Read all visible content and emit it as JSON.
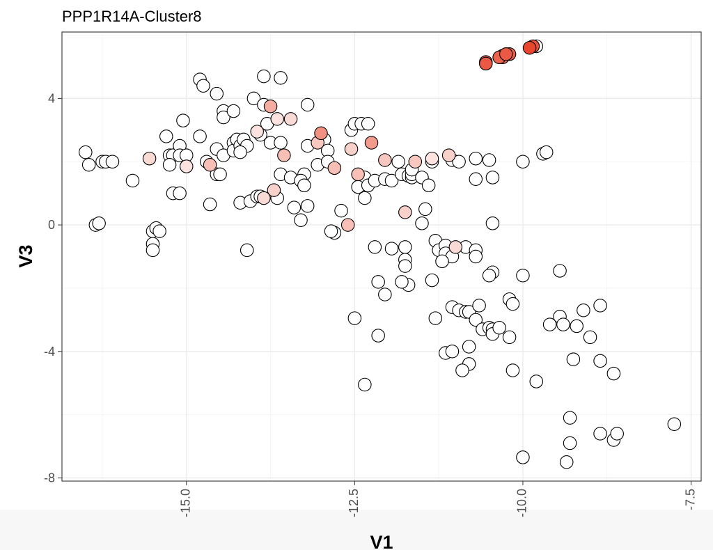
{
  "chart_data": {
    "type": "scatter",
    "title": "PPP1R14A-Cluster8",
    "xlabel": "V1",
    "ylabel": "V3",
    "xlim": [
      -16.85,
      -7.35
    ],
    "ylim": [
      -8.1,
      6.1
    ],
    "grid": true,
    "x_ticks": [
      -15.0,
      -12.5,
      -10.0,
      -7.5
    ],
    "x_tick_labels": [
      "-15.0",
      "-12.5",
      "-10.0",
      "-7.5"
    ],
    "y_ticks": [
      4,
      0,
      -4,
      -8
    ],
    "y_tick_labels": [
      "4",
      "0",
      "-4",
      "-8"
    ],
    "low_color": "#ffffff",
    "high_color": "#e8472e",
    "points": [
      [
        -16.5,
        2.3,
        0
      ],
      [
        -16.45,
        1.9,
        0
      ],
      [
        -16.25,
        2.0,
        0
      ],
      [
        -16.2,
        2.0,
        0
      ],
      [
        -16.1,
        2.0,
        0
      ],
      [
        -15.8,
        1.4,
        0
      ],
      [
        -16.35,
        0.0,
        0
      ],
      [
        -16.3,
        0.05,
        0
      ],
      [
        -15.55,
        2.1,
        0.2
      ],
      [
        -15.3,
        2.8,
        0
      ],
      [
        -15.25,
        2.2,
        0
      ],
      [
        -15.2,
        2.2,
        0
      ],
      [
        -15.25,
        1.9,
        0
      ],
      [
        -15.1,
        2.5,
        0
      ],
      [
        -15.1,
        2.2,
        0
      ],
      [
        -15.05,
        3.3,
        0
      ],
      [
        -15.0,
        2.2,
        0
      ],
      [
        -15.0,
        1.85,
        0.15
      ],
      [
        -15.2,
        1.0,
        0
      ],
      [
        -15.1,
        1.0,
        0
      ],
      [
        -15.5,
        -0.2,
        0
      ],
      [
        -15.45,
        -0.1,
        0
      ],
      [
        -15.4,
        -0.2,
        0
      ],
      [
        -15.5,
        -0.6,
        0
      ],
      [
        -15.5,
        -0.8,
        0
      ],
      [
        -14.8,
        4.6,
        0
      ],
      [
        -14.75,
        4.4,
        0
      ],
      [
        -14.55,
        4.15,
        0
      ],
      [
        -14.45,
        3.6,
        0
      ],
      [
        -14.45,
        3.4,
        0
      ],
      [
        -14.3,
        3.6,
        0
      ],
      [
        -14.8,
        2.8,
        0
      ],
      [
        -14.55,
        2.4,
        0
      ],
      [
        -14.45,
        2.2,
        0
      ],
      [
        -14.3,
        2.6,
        0
      ],
      [
        -14.3,
        2.35,
        0
      ],
      [
        -14.25,
        2.7,
        0
      ],
      [
        -14.2,
        2.5,
        0
      ],
      [
        -14.15,
        2.7,
        0
      ],
      [
        -14.1,
        2.5,
        0
      ],
      [
        -14.2,
        2.3,
        0
      ],
      [
        -14.65,
        1.9,
        0.35
      ],
      [
        -14.55,
        1.6,
        0
      ],
      [
        -14.5,
        1.6,
        0
      ],
      [
        -14.7,
        2.0,
        0
      ],
      [
        -14.65,
        0.65,
        0
      ],
      [
        -14.2,
        0.7,
        0
      ],
      [
        -14.05,
        0.75,
        0
      ],
      [
        -13.95,
        0.9,
        0
      ],
      [
        -13.9,
        0.9,
        0
      ],
      [
        -13.85,
        4.7,
        0
      ],
      [
        -13.6,
        4.65,
        0
      ],
      [
        -14.0,
        4.0,
        0
      ],
      [
        -13.85,
        3.8,
        0
      ],
      [
        -13.75,
        3.75,
        0.45
      ],
      [
        -13.8,
        3.2,
        0
      ],
      [
        -13.65,
        3.35,
        0.15
      ],
      [
        -13.45,
        3.35,
        0.2
      ],
      [
        -13.95,
        2.95,
        0.15
      ],
      [
        -13.9,
        2.85,
        0
      ],
      [
        -13.75,
        2.6,
        0
      ],
      [
        -13.6,
        2.6,
        0
      ],
      [
        -13.55,
        2.2,
        0.35
      ],
      [
        -13.6,
        1.6,
        0
      ],
      [
        -13.45,
        1.5,
        0
      ],
      [
        -13.7,
        1.1,
        0.25
      ],
      [
        -13.85,
        0.85,
        0.2
      ],
      [
        -13.65,
        0.85,
        0
      ],
      [
        -13.4,
        0.55,
        0
      ],
      [
        -13.25,
        1.6,
        0
      ],
      [
        -13.3,
        1.4,
        0
      ],
      [
        -13.25,
        1.25,
        0
      ],
      [
        -13.2,
        2.5,
        0
      ],
      [
        -13.2,
        3.8,
        0
      ],
      [
        -13.2,
        0.6,
        0
      ],
      [
        -13.3,
        0.15,
        0
      ],
      [
        -14.1,
        -0.8,
        0
      ],
      [
        -13.05,
        2.6,
        0.3
      ],
      [
        -13.0,
        2.9,
        0.6
      ],
      [
        -12.95,
        2.7,
        0
      ],
      [
        -12.9,
        2.35,
        0
      ],
      [
        -13.05,
        1.9,
        0
      ],
      [
        -12.9,
        2.0,
        0
      ],
      [
        -12.8,
        1.8,
        0.35
      ],
      [
        -12.8,
        -0.25,
        0
      ],
      [
        -12.85,
        -0.2,
        0
      ],
      [
        -12.7,
        0.45,
        0
      ],
      [
        -12.6,
        0.0,
        0.35
      ],
      [
        -12.55,
        3.0,
        0
      ],
      [
        -12.5,
        3.2,
        0
      ],
      [
        -12.4,
        3.2,
        0
      ],
      [
        -12.3,
        3.2,
        0
      ],
      [
        -12.55,
        2.4,
        0.25
      ],
      [
        -12.25,
        2.6,
        0.55
      ],
      [
        -12.45,
        1.6,
        0.35
      ],
      [
        -12.35,
        1.5,
        0
      ],
      [
        -12.45,
        1.2,
        0
      ],
      [
        -12.3,
        1.25,
        0
      ],
      [
        -12.35,
        0.85,
        0
      ],
      [
        -12.2,
        1.4,
        0
      ],
      [
        -12.05,
        2.05,
        0.3
      ],
      [
        -12.05,
        1.45,
        0
      ],
      [
        -11.95,
        1.4,
        0
      ],
      [
        -12.2,
        -0.7,
        0
      ],
      [
        -11.95,
        -0.75,
        0
      ],
      [
        -12.15,
        -1.8,
        0
      ],
      [
        -12.05,
        -2.2,
        0
      ],
      [
        -12.5,
        -2.95,
        0
      ],
      [
        -12.15,
        -3.5,
        0
      ],
      [
        -12.35,
        -5.05,
        0
      ],
      [
        -11.85,
        2.0,
        0
      ],
      [
        -11.8,
        1.6,
        0
      ],
      [
        -11.7,
        1.55,
        0
      ],
      [
        -11.65,
        1.5,
        0
      ],
      [
        -11.65,
        1.6,
        0
      ],
      [
        -11.65,
        1.75,
        0
      ],
      [
        -11.6,
        2.0,
        0.3
      ],
      [
        -11.5,
        1.5,
        0
      ],
      [
        -11.4,
        1.25,
        0
      ],
      [
        -11.35,
        2.0,
        0
      ],
      [
        -11.35,
        2.1,
        0.15
      ],
      [
        -11.75,
        0.4,
        0.25
      ],
      [
        -11.45,
        0.5,
        0
      ],
      [
        -11.5,
        0.05,
        0
      ],
      [
        -11.75,
        -0.7,
        0
      ],
      [
        -11.75,
        -1.1,
        0
      ],
      [
        -11.75,
        -1.3,
        0
      ],
      [
        -11.7,
        -1.9,
        0
      ],
      [
        -11.8,
        -1.8,
        0
      ],
      [
        -11.35,
        -1.75,
        0
      ],
      [
        -11.3,
        -0.5,
        0
      ],
      [
        -11.25,
        -0.8,
        0
      ],
      [
        -11.15,
        -0.65,
        0
      ],
      [
        -11.15,
        -0.9,
        0
      ],
      [
        -11.05,
        -1.0,
        0
      ],
      [
        -11.2,
        -1.15,
        0
      ],
      [
        -11.0,
        -0.7,
        0.2
      ],
      [
        -10.85,
        -0.7,
        0
      ],
      [
        -10.7,
        -0.8,
        0
      ],
      [
        -10.7,
        -1.0,
        0
      ],
      [
        -11.1,
        2.2,
        0.25
      ],
      [
        -11.05,
        2.05,
        0
      ],
      [
        -10.95,
        2.0,
        0
      ],
      [
        -10.7,
        2.1,
        0
      ],
      [
        -10.7,
        1.45,
        0
      ],
      [
        -10.5,
        2.05,
        0
      ],
      [
        -10.45,
        1.5,
        0
      ],
      [
        -10.45,
        0.05,
        0
      ],
      [
        -10.45,
        -1.5,
        0
      ],
      [
        -10.5,
        -1.6,
        0
      ],
      [
        -11.3,
        -2.95,
        0
      ],
      [
        -11.05,
        -2.6,
        0
      ],
      [
        -10.95,
        -2.7,
        0
      ],
      [
        -10.85,
        -2.75,
        0
      ],
      [
        -10.8,
        -2.75,
        0
      ],
      [
        -10.65,
        -2.55,
        0
      ],
      [
        -10.7,
        -3.0,
        0
      ],
      [
        -10.6,
        -3.3,
        0
      ],
      [
        -10.5,
        -3.25,
        0
      ],
      [
        -10.45,
        -3.3,
        0
      ],
      [
        -10.45,
        -3.45,
        0
      ],
      [
        -10.35,
        -3.25,
        0
      ],
      [
        -10.2,
        -3.55,
        0
      ],
      [
        -11.15,
        -4.05,
        0
      ],
      [
        -11.05,
        -4.0,
        0
      ],
      [
        -10.8,
        -3.85,
        0
      ],
      [
        -10.8,
        -4.4,
        0
      ],
      [
        -10.9,
        -4.6,
        0
      ],
      [
        -10.15,
        -4.6,
        0
      ],
      [
        -10.2,
        -2.35,
        0
      ],
      [
        -10.15,
        -2.5,
        0
      ],
      [
        -10.0,
        -1.6,
        0
      ],
      [
        -10.0,
        2.0,
        0
      ],
      [
        -9.7,
        2.25,
        0
      ],
      [
        -9.65,
        2.3,
        0
      ],
      [
        -9.45,
        -1.45,
        0
      ],
      [
        -9.45,
        -2.9,
        0
      ],
      [
        -9.6,
        -3.15,
        0
      ],
      [
        -9.4,
        -3.15,
        0
      ],
      [
        -9.2,
        -3.2,
        0
      ],
      [
        -9.1,
        -2.7,
        0
      ],
      [
        -9.0,
        -3.55,
        0
      ],
      [
        -8.85,
        -2.55,
        0
      ],
      [
        -9.8,
        -4.95,
        0
      ],
      [
        -9.25,
        -4.25,
        0
      ],
      [
        -8.85,
        -4.3,
        0
      ],
      [
        -9.3,
        -6.1,
        0
      ],
      [
        -9.3,
        -6.9,
        0
      ],
      [
        -9.35,
        -7.5,
        0
      ],
      [
        -10.0,
        -7.35,
        0
      ],
      [
        -8.85,
        -6.6,
        0
      ],
      [
        -8.65,
        -6.8,
        0
      ],
      [
        -8.6,
        -6.6,
        0
      ],
      [
        -8.65,
        -4.7,
        0
      ],
      [
        -7.75,
        -6.3,
        0
      ],
      [
        -10.55,
        5.1,
        0.9
      ],
      [
        -10.55,
        5.15,
        0.85
      ],
      [
        -10.35,
        5.3,
        0.85
      ],
      [
        -10.3,
        5.35,
        0.8
      ],
      [
        -10.3,
        5.3,
        0.8
      ],
      [
        -10.25,
        5.4,
        0.9
      ],
      [
        -10.2,
        5.4,
        0.85
      ],
      [
        -9.9,
        5.6,
        1.0
      ],
      [
        -9.85,
        5.65,
        0.95
      ],
      [
        -9.8,
        5.65,
        0
      ]
    ]
  }
}
